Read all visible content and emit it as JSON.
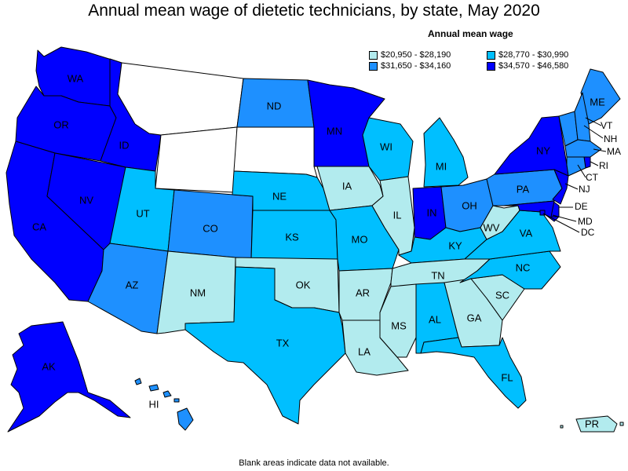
{
  "title": "Annual mean wage of dietetic technicians, by state, May 2020",
  "legend": {
    "title": "Annual mean wage",
    "bins": [
      {
        "label": "$20,950 - $28,190",
        "color": "#b2ebee"
      },
      {
        "label": "$28,770 - $30,990",
        "color": "#00bfff"
      },
      {
        "label": "$31,650 - $34,160",
        "color": "#1e90ff"
      },
      {
        "label": "$34,570 - $46,580",
        "color": "#0000ff"
      }
    ]
  },
  "footnote": "Blank areas indicate data not available.",
  "states": {
    "WA": {
      "label": "WA",
      "bin": 3
    },
    "OR": {
      "label": "OR",
      "bin": 3
    },
    "CA": {
      "label": "CA",
      "bin": 3
    },
    "NV": {
      "label": "NV",
      "bin": 3
    },
    "ID": {
      "label": "ID",
      "bin": 3
    },
    "MT": {
      "label": "",
      "bin": null
    },
    "WY": {
      "label": "",
      "bin": null
    },
    "UT": {
      "label": "UT",
      "bin": 1
    },
    "AZ": {
      "label": "AZ",
      "bin": 2
    },
    "CO": {
      "label": "CO",
      "bin": 2
    },
    "NM": {
      "label": "NM",
      "bin": 0
    },
    "ND": {
      "label": "ND",
      "bin": 2
    },
    "SD": {
      "label": "",
      "bin": null
    },
    "NE": {
      "label": "NE",
      "bin": 1
    },
    "KS": {
      "label": "KS",
      "bin": 1
    },
    "OK": {
      "label": "OK",
      "bin": 0
    },
    "TX": {
      "label": "TX",
      "bin": 1
    },
    "MN": {
      "label": "MN",
      "bin": 3
    },
    "IA": {
      "label": "IA",
      "bin": 0
    },
    "MO": {
      "label": "MO",
      "bin": 1
    },
    "AR": {
      "label": "AR",
      "bin": 0
    },
    "LA": {
      "label": "LA",
      "bin": 0
    },
    "WI": {
      "label": "WI",
      "bin": 1
    },
    "IL": {
      "label": "IL",
      "bin": 0
    },
    "MI": {
      "label": "MI",
      "bin": 1
    },
    "IN": {
      "label": "IN",
      "bin": 3
    },
    "OH": {
      "label": "OH",
      "bin": 2
    },
    "KY": {
      "label": "KY",
      "bin": 1
    },
    "TN": {
      "label": "TN",
      "bin": 0
    },
    "MS": {
      "label": "MS",
      "bin": 0
    },
    "AL": {
      "label": "AL",
      "bin": 1
    },
    "GA": {
      "label": "GA",
      "bin": 0
    },
    "FL": {
      "label": "FL",
      "bin": 1
    },
    "SC": {
      "label": "SC",
      "bin": 0
    },
    "NC": {
      "label": "NC",
      "bin": 1
    },
    "VA": {
      "label": "VA",
      "bin": 1
    },
    "WV": {
      "label": "WV",
      "bin": 0
    },
    "PA": {
      "label": "PA",
      "bin": 2
    },
    "NY": {
      "label": "NY",
      "bin": 3
    },
    "ME": {
      "label": "ME",
      "bin": 2
    },
    "VT": {
      "label": "VT",
      "bin": 2
    },
    "NH": {
      "label": "NH",
      "bin": 2
    },
    "MA": {
      "label": "MA",
      "bin": 2
    },
    "RI": {
      "label": "RI",
      "bin": 3
    },
    "CT": {
      "label": "CT",
      "bin": 2
    },
    "NJ": {
      "label": "NJ",
      "bin": 3
    },
    "DE": {
      "label": "DE",
      "bin": 3
    },
    "MD": {
      "label": "MD",
      "bin": 3
    },
    "DC": {
      "label": "DC",
      "bin": 3
    },
    "AK": {
      "label": "AK",
      "bin": 3
    },
    "HI": {
      "label": "HI",
      "bin": 2
    },
    "PR": {
      "label": "PR",
      "bin": 0
    }
  }
}
